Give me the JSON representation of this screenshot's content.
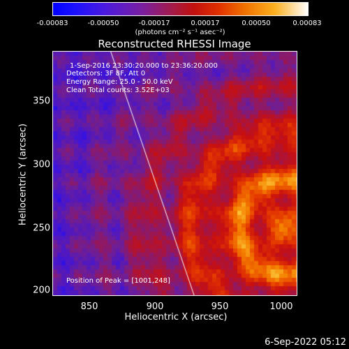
{
  "colorbar": {
    "ticks": [
      "-0.00083",
      "-0.00050",
      "-0.00017",
      "0.00017",
      "0.00050",
      "0.00083"
    ],
    "units_label": "(photons cm⁻² s⁻¹ asec⁻²)"
  },
  "plot": {
    "title": "Reconstructed RHESSI Image",
    "xlabel": "Heliocentric X (arcsec)",
    "ylabel": "Heliocentric Y (arcsec)",
    "xticks": [
      "850",
      "900",
      "950",
      "1000"
    ],
    "yticks": [
      "350",
      "300",
      "250",
      "200"
    ],
    "info": {
      "time": "1-Sep-2016 23:30:20.000 to 23:36:20.000",
      "detectors": "Detectors: 3F 8F, Att 0",
      "energy": "Energy Range: 25.0 - 50.0 keV",
      "clean": "Clean     Total counts: 3.52E+03"
    },
    "peak": "Position of Peak = [1001,248]"
  },
  "footer": {
    "timestamp": "6-Sep-2022 05:12"
  },
  "chart_data": {
    "type": "heatmap",
    "title": "Reconstructed RHESSI Image",
    "xlabel": "Heliocentric X (arcsec)",
    "ylabel": "Heliocentric Y (arcsec)",
    "xlim": [
      820,
      1010
    ],
    "ylim": [
      196,
      382
    ],
    "peak": [
      1001,
      248
    ],
    "colorscale_range": [
      -0.00083,
      0.00083
    ],
    "limb_line": [
      [
        865,
        382
      ],
      [
        930,
        196
      ]
    ]
  }
}
